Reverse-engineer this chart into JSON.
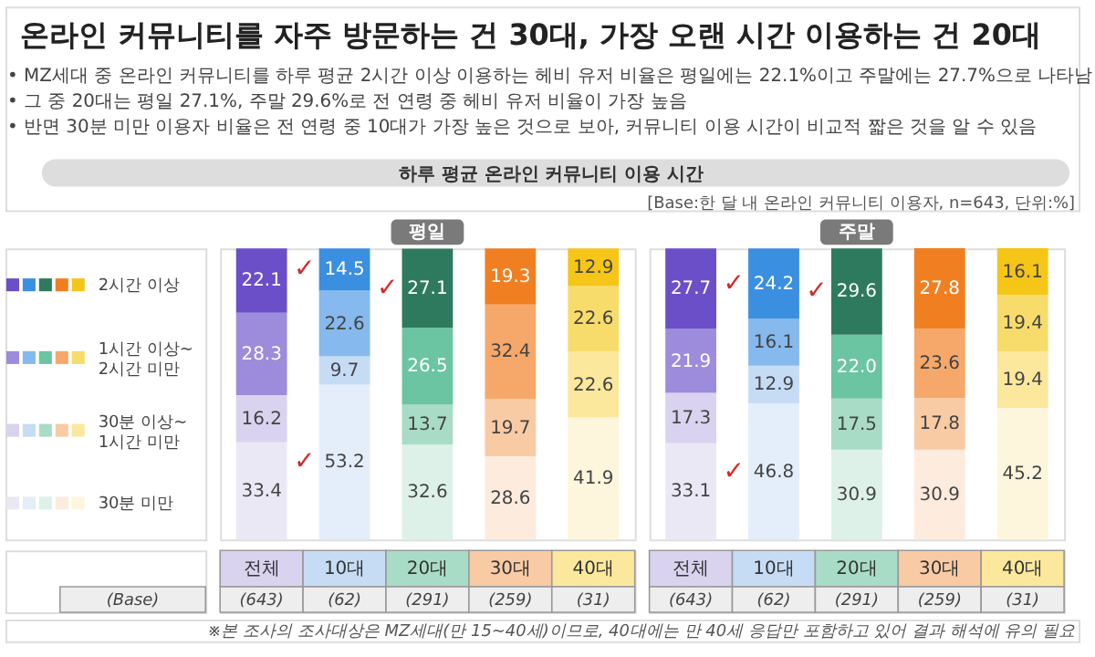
{
  "chart_data": [
    {
      "type": "bar",
      "title": "평일",
      "stacked": true,
      "ylim": [
        0,
        100
      ],
      "tick_labels": false,
      "data_labels": true,
      "legend": "left",
      "xlabel": "(Base)",
      "categories": [
        "전체",
        "10대",
        "20대",
        "30대",
        "40대"
      ],
      "series": [
        {
          "name": "30분 미만",
          "colors": [
            "#ebe8f6",
            "#e4eefa",
            "#ddf1e8",
            "#fdebdd",
            "#fdf6dc"
          ],
          "values": [
            33.4,
            53.2,
            32.6,
            28.6,
            41.9
          ]
        },
        {
          "name": "30분 이상~1시간 미만",
          "colors": [
            "#d9d3ef",
            "#c6dcf5",
            "#a9dcc6",
            "#f9cba4",
            "#fbe89d"
          ],
          "values": [
            16.2,
            9.7,
            13.7,
            19.7,
            22.6
          ]
        },
        {
          "name": "1시간 이상~2시간 미만",
          "colors": [
            "#9d8cdb",
            "#86b9ee",
            "#6bc4a2",
            "#f5a86a",
            "#f8dc6b"
          ],
          "values": [
            28.3,
            22.6,
            26.5,
            32.4,
            22.6
          ]
        },
        {
          "name": "2시간 이상",
          "colors": [
            "#6a4fc8",
            "#3b8fe0",
            "#2e7a5e",
            "#f07f22",
            "#f5c518"
          ],
          "values": [
            22.1,
            14.5,
            27.1,
            19.3,
            12.9
          ]
        }
      ],
      "annotations": [
        "온라인 커뮤니티를 자주 방문하는 건 30대, 가장 오랜 시간 이용하는 건 20대",
        "• MZ세대 중 온라인 커뮤니티를 하루 평균 2시간 이상 이용하는 헤비 유저 비율은 평일에는 22.1%이고 주말에는 27.7%으로 나타남",
        "• 그 중 20대는 평일 27.1%, 주말 29.6%로 전 연령 중 헤비 유저 비율이 가장 높음",
        "• 반면 30분 미만 이용자 비율은 전 연령 중 10대가 가장 높은 것으로 보아, 커뮤니티 이용 시간이 비교적 짧은 것을 알 수 있음",
        "하루 평균 온라인 커뮤니티 이용 시간",
        "[Base:한 달 내 온라인 커뮤니티 이용자, n=643, 단위:%]",
        "(643)",
        "(62)",
        "(291)",
        "(259)",
        "(31)",
        "✓",
        "✓",
        "✓"
      ]
    },
    {
      "type": "bar",
      "title": "주말",
      "stacked": true,
      "ylim": [
        0,
        100
      ],
      "tick_labels": false,
      "data_labels": true,
      "categories": [
        "전체",
        "10대",
        "20대",
        "30대",
        "40대"
      ],
      "series": [
        {
          "colors": [
            "#ebe8f6",
            "#e4eefa",
            "#ddf1e8",
            "#fdebdd",
            "#fdf6dc"
          ],
          "values": [
            33.1,
            46.8,
            30.9,
            30.9,
            45.2
          ]
        },
        {
          "colors": [
            "#d9d3ef",
            "#c6dcf5",
            "#a9dcc6",
            "#f9cba4",
            "#fbe89d"
          ],
          "values": [
            17.3,
            12.9,
            17.5,
            17.8,
            19.4
          ]
        },
        {
          "colors": [
            "#9d8cdb",
            "#86b9ee",
            "#6bc4a2",
            "#f5a86a",
            "#f8dc6b"
          ],
          "values": [
            21.9,
            16.1,
            22.0,
            23.6,
            19.4
          ],
          "value_labels": [
            "21.9",
            "16.1",
            "22.0",
            "23.6",
            "19.4"
          ]
        },
        {
          "colors": [
            "#6a4fc8",
            "#3b8fe0",
            "#2e7a5e",
            "#f07f22",
            "#f5c518"
          ],
          "values": [
            27.7,
            24.2,
            29.6,
            27.8,
            16.1
          ]
        }
      ],
      "annotations": [
        "※본 조사의 조사대상은 MZ세대(만 15~40세)이므로, 40대에는 만 40세 응답만 포함하고 있어 결과 해석에 유의 필요",
        "(643)",
        "(62)",
        "(291)",
        "(259)",
        "(31)",
        "✓",
        "✓",
        "✓"
      ]
    }
  ]
}
